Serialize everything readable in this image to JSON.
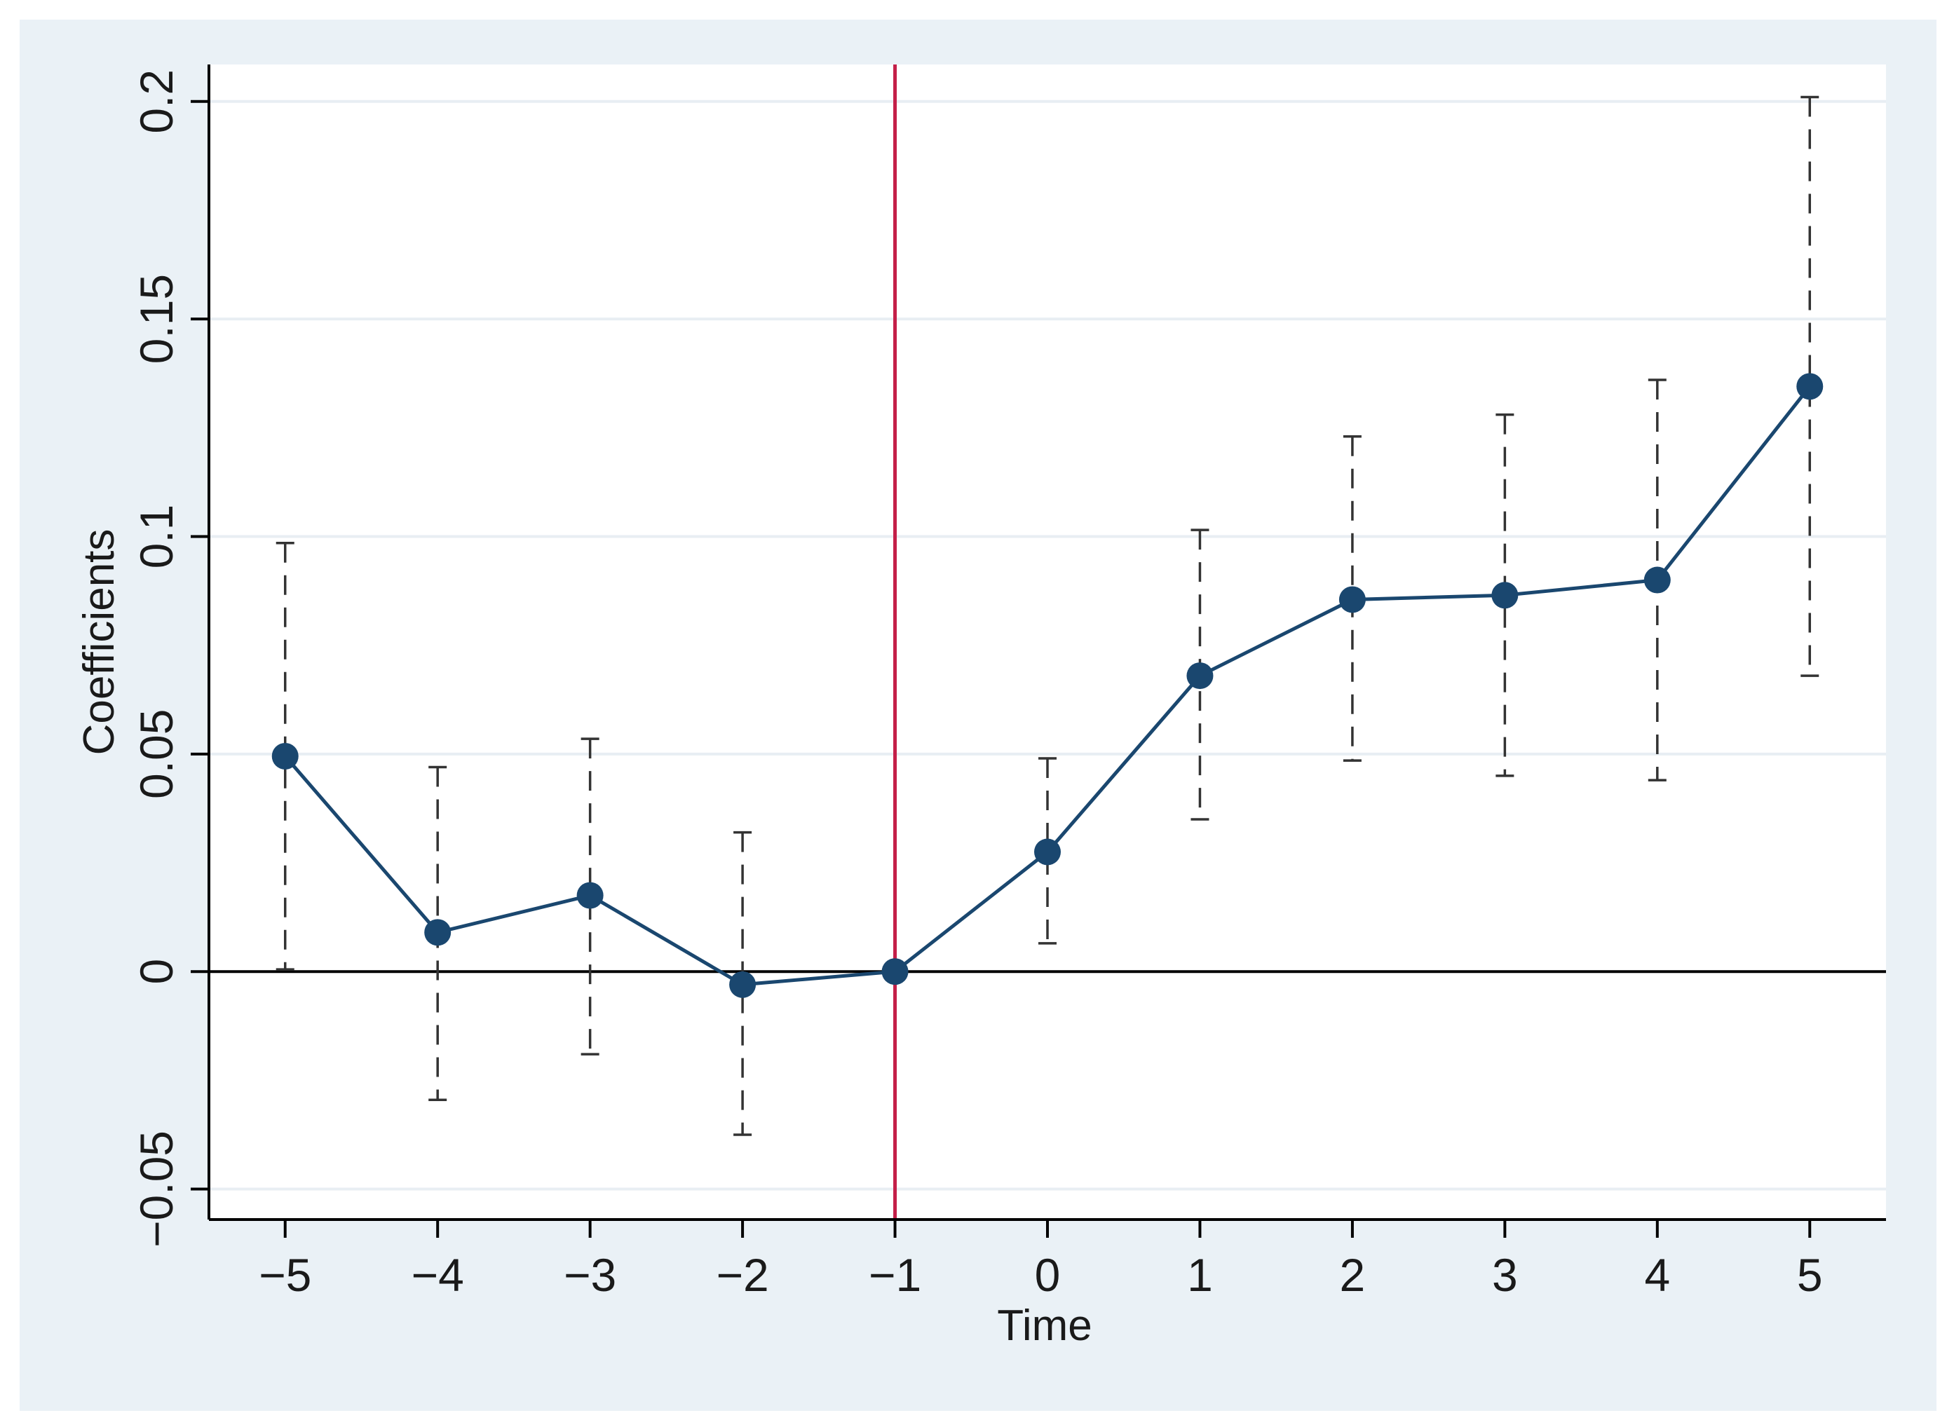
{
  "chart_data": {
    "type": "line",
    "xlabel": "Time",
    "ylabel": "Coefficients",
    "xlim": [
      -5.5,
      5.5
    ],
    "ylim": [
      -0.057,
      0.2085
    ],
    "x_ticks": [
      -5,
      -4,
      -3,
      -2,
      -1,
      0,
      1,
      2,
      3,
      4,
      5
    ],
    "x_tick_labels": [
      "−5",
      "−4",
      "−3",
      "−2",
      "−1",
      "0",
      "1",
      "2",
      "3",
      "4",
      "5"
    ],
    "y_ticks": [
      -0.05,
      0,
      0.05,
      0.1,
      0.15,
      0.2
    ],
    "y_tick_labels": [
      "−0.05",
      "0",
      "0.05",
      "0.1",
      "0.15",
      "0.2"
    ],
    "grid": true,
    "reference_lines": {
      "vertical_x": -1,
      "horizontal_y": 0
    },
    "series": [
      {
        "x": [
          -5,
          -4,
          -3,
          -2,
          -1,
          0,
          1,
          2,
          3,
          4,
          5
        ],
        "y": [
          0.0495,
          0.009,
          0.0175,
          -0.003,
          0.0,
          0.0275,
          0.068,
          0.0855,
          0.0865,
          0.09,
          0.1345
        ],
        "ci_low": [
          0.0005,
          -0.0295,
          -0.019,
          -0.0375,
          null,
          0.0065,
          0.035,
          0.0485,
          0.045,
          0.044,
          0.068
        ],
        "ci_high": [
          0.0985,
          0.047,
          0.0535,
          0.032,
          null,
          0.049,
          0.1015,
          0.123,
          0.128,
          0.136,
          0.201
        ]
      }
    ],
    "colors": {
      "outer_background": "#eaf1f6",
      "plot_background": "#ffffff",
      "grid": "#e8eef3",
      "series": "#1a476f",
      "vertical_line": "#c41f48",
      "zero_line": "#000000",
      "ci": "#333333"
    }
  }
}
